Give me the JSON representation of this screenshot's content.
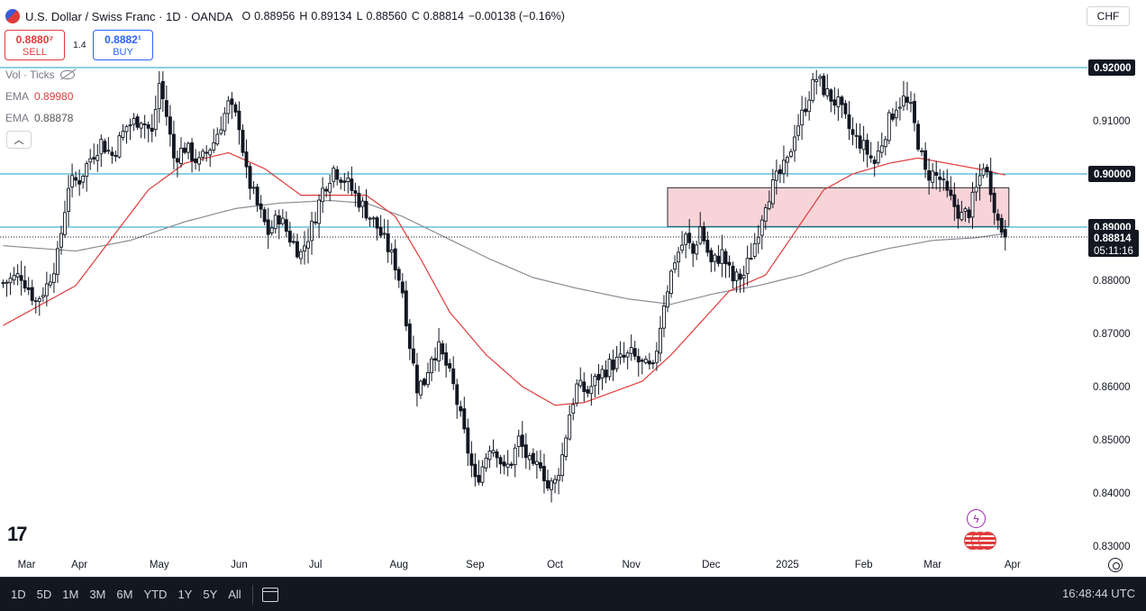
{
  "header": {
    "title": "U.S. Dollar / Swiss Franc · 1D · OANDA",
    "open_key": "O",
    "open": "0.88956",
    "high_key": "H",
    "high": "0.89134",
    "low_key": "L",
    "low": "0.88560",
    "close_key": "C",
    "close": "0.88814",
    "change": "−0.00138 (−0.16%)"
  },
  "trade": {
    "sell_price": "0.8880⁷",
    "sell_label": "SELL",
    "spread": "1.4",
    "buy_price": "0.8882¹",
    "buy_label": "BUY"
  },
  "indicators": {
    "vol_label": "Vol · Ticks",
    "ema1_label": "EMA",
    "ema1_value": "0.89980",
    "ema2_label": "EMA",
    "ema2_value": "0.88878"
  },
  "currency_button": "CHF",
  "bottom_bar": {
    "ranges": [
      "1D",
      "5D",
      "1M",
      "3M",
      "6M",
      "YTD",
      "1Y",
      "5Y",
      "All"
    ],
    "time": "16:48:44 UTC"
  },
  "colors": {
    "up": "#131722",
    "down": "#131722",
    "ema50": "#e03b3b",
    "ema200": "#8a8d96",
    "level_line": "#1aa2c8",
    "zone_fill": "#f8d4d8",
    "zone_stroke": "#2b2b2b",
    "label_bg": "#131722"
  },
  "chart_data": {
    "type": "candlestick",
    "symbol": "USDCHF",
    "yaxis": {
      "min": 0.83,
      "max": 0.92,
      "ticks": [
        "0.91000",
        "0.88000",
        "0.87000",
        "0.86000",
        "0.85000",
        "0.84000",
        "0.83000"
      ],
      "ticks_values": [
        0.91,
        0.88,
        0.87,
        0.86,
        0.85,
        0.84,
        0.83
      ]
    },
    "xaxis": {
      "labels": [
        "Mar",
        "Apr",
        "May",
        "Jun",
        "Jul",
        "Aug",
        "Sep",
        "Oct",
        "Nov",
        "Dec",
        "2025",
        "Feb",
        "Mar",
        "Apr"
      ],
      "label_index": [
        0,
        21,
        43,
        65,
        86,
        109,
        130,
        152,
        173,
        195,
        216,
        237,
        256,
        278
      ]
    },
    "level_lines": [
      {
        "value": 0.92,
        "label": "0.92000"
      },
      {
        "value": 0.9,
        "label": "0.90000"
      },
      {
        "value": 0.89,
        "label": "0.89000"
      }
    ],
    "current_price": {
      "value": 0.88814,
      "label": "0.88814",
      "countdown": "05:11:16"
    },
    "zone": {
      "from_index": 183,
      "to_index": 277,
      "top": 0.8974,
      "bottom": 0.8901
    },
    "ohlc_anchors": [
      [
        0,
        0.8795
      ],
      [
        5,
        0.881
      ],
      [
        9,
        0.876
      ],
      [
        12,
        0.879
      ],
      [
        15,
        0.8845
      ],
      [
        18,
        0.898
      ],
      [
        21,
        0.899
      ],
      [
        24,
        0.903
      ],
      [
        27,
        0.906
      ],
      [
        30,
        0.9035
      ],
      [
        34,
        0.909
      ],
      [
        38,
        0.9105
      ],
      [
        41,
        0.9075
      ],
      [
        43,
        0.917
      ],
      [
        45,
        0.911
      ],
      [
        47,
        0.903
      ],
      [
        50,
        0.905
      ],
      [
        54,
        0.902
      ],
      [
        58,
        0.906
      ],
      [
        62,
        0.913
      ],
      [
        65,
        0.9095
      ],
      [
        67,
        0.9
      ],
      [
        70,
        0.894
      ],
      [
        73,
        0.889
      ],
      [
        76,
        0.892
      ],
      [
        79,
        0.888
      ],
      [
        82,
        0.885
      ],
      [
        85,
        0.89
      ],
      [
        88,
        0.897
      ],
      [
        91,
        0.901
      ],
      [
        94,
        0.899
      ],
      [
        97,
        0.896
      ],
      [
        100,
        0.893
      ],
      [
        103,
        0.89
      ],
      [
        106,
        0.886
      ],
      [
        108,
        0.883
      ],
      [
        110,
        0.878
      ],
      [
        112,
        0.868
      ],
      [
        114,
        0.86
      ],
      [
        116,
        0.861
      ],
      [
        118,
        0.866
      ],
      [
        120,
        0.867
      ],
      [
        122,
        0.864
      ],
      [
        124,
        0.86
      ],
      [
        126,
        0.854
      ],
      [
        128,
        0.848
      ],
      [
        130,
        0.842
      ],
      [
        132,
        0.845
      ],
      [
        134,
        0.849
      ],
      [
        136,
        0.848
      ],
      [
        138,
        0.844
      ],
      [
        140,
        0.846
      ],
      [
        142,
        0.85
      ],
      [
        144,
        0.847
      ],
      [
        146,
        0.844
      ],
      [
        148,
        0.846
      ],
      [
        150,
        0.841
      ],
      [
        152,
        0.842
      ],
      [
        154,
        0.847
      ],
      [
        156,
        0.855
      ],
      [
        158,
        0.86
      ],
      [
        161,
        0.859
      ],
      [
        164,
        0.862
      ],
      [
        167,
        0.864
      ],
      [
        170,
        0.865
      ],
      [
        173,
        0.866
      ],
      [
        176,
        0.864
      ],
      [
        179,
        0.863
      ],
      [
        182,
        0.876
      ],
      [
        185,
        0.884
      ],
      [
        188,
        0.888
      ],
      [
        190,
        0.885
      ],
      [
        192,
        0.89
      ],
      [
        195,
        0.883
      ],
      [
        198,
        0.885
      ],
      [
        201,
        0.88
      ],
      [
        204,
        0.881
      ],
      [
        207,
        0.887
      ],
      [
        210,
        0.895
      ],
      [
        213,
        0.899
      ],
      [
        216,
        0.902
      ],
      [
        218,
        0.908
      ],
      [
        220,
        0.911
      ],
      [
        222,
        0.915
      ],
      [
        224,
        0.918
      ],
      [
        227,
        0.915
      ],
      [
        230,
        0.913
      ],
      [
        232,
        0.91
      ],
      [
        234,
        0.907
      ],
      [
        236,
        0.906
      ],
      [
        238,
        0.904
      ],
      [
        240,
        0.902
      ],
      [
        242,
        0.906
      ],
      [
        244,
        0.91
      ],
      [
        246,
        0.913
      ],
      [
        248,
        0.914
      ],
      [
        250,
        0.912
      ],
      [
        252,
        0.906
      ],
      [
        254,
        0.9
      ],
      [
        256,
        0.9
      ],
      [
        258,
        0.899
      ],
      [
        260,
        0.896
      ],
      [
        262,
        0.894
      ],
      [
        264,
        0.892
      ],
      [
        266,
        0.893
      ],
      [
        268,
        0.897
      ],
      [
        270,
        0.902
      ],
      [
        272,
        0.8975
      ],
      [
        274,
        0.891
      ],
      [
        276,
        0.8882
      ]
    ],
    "ema50_anchors": [
      [
        0,
        0.8715
      ],
      [
        20,
        0.879
      ],
      [
        30,
        0.888
      ],
      [
        40,
        0.897
      ],
      [
        50,
        0.902
      ],
      [
        62,
        0.904
      ],
      [
        72,
        0.901
      ],
      [
        82,
        0.896
      ],
      [
        92,
        0.896
      ],
      [
        100,
        0.896
      ],
      [
        108,
        0.892
      ],
      [
        115,
        0.884
      ],
      [
        123,
        0.874
      ],
      [
        133,
        0.866
      ],
      [
        143,
        0.86
      ],
      [
        152,
        0.8565
      ],
      [
        160,
        0.857
      ],
      [
        168,
        0.859
      ],
      [
        176,
        0.861
      ],
      [
        184,
        0.866
      ],
      [
        192,
        0.872
      ],
      [
        200,
        0.878
      ],
      [
        210,
        0.881
      ],
      [
        218,
        0.889
      ],
      [
        226,
        0.897
      ],
      [
        234,
        0.9
      ],
      [
        244,
        0.902
      ],
      [
        252,
        0.903
      ],
      [
        260,
        0.902
      ],
      [
        268,
        0.901
      ],
      [
        276,
        0.8998
      ]
    ],
    "ema200_anchors": [
      [
        0,
        0.8865
      ],
      [
        20,
        0.8855
      ],
      [
        35,
        0.8875
      ],
      [
        50,
        0.891
      ],
      [
        64,
        0.8935
      ],
      [
        76,
        0.8945
      ],
      [
        90,
        0.895
      ],
      [
        100,
        0.8945
      ],
      [
        110,
        0.892
      ],
      [
        122,
        0.888
      ],
      [
        134,
        0.884
      ],
      [
        146,
        0.8805
      ],
      [
        158,
        0.8785
      ],
      [
        172,
        0.8765
      ],
      [
        184,
        0.8755
      ],
      [
        196,
        0.8775
      ],
      [
        208,
        0.879
      ],
      [
        220,
        0.881
      ],
      [
        232,
        0.884
      ],
      [
        244,
        0.886
      ],
      [
        256,
        0.8875
      ],
      [
        268,
        0.888
      ],
      [
        276,
        0.8888
      ]
    ]
  }
}
